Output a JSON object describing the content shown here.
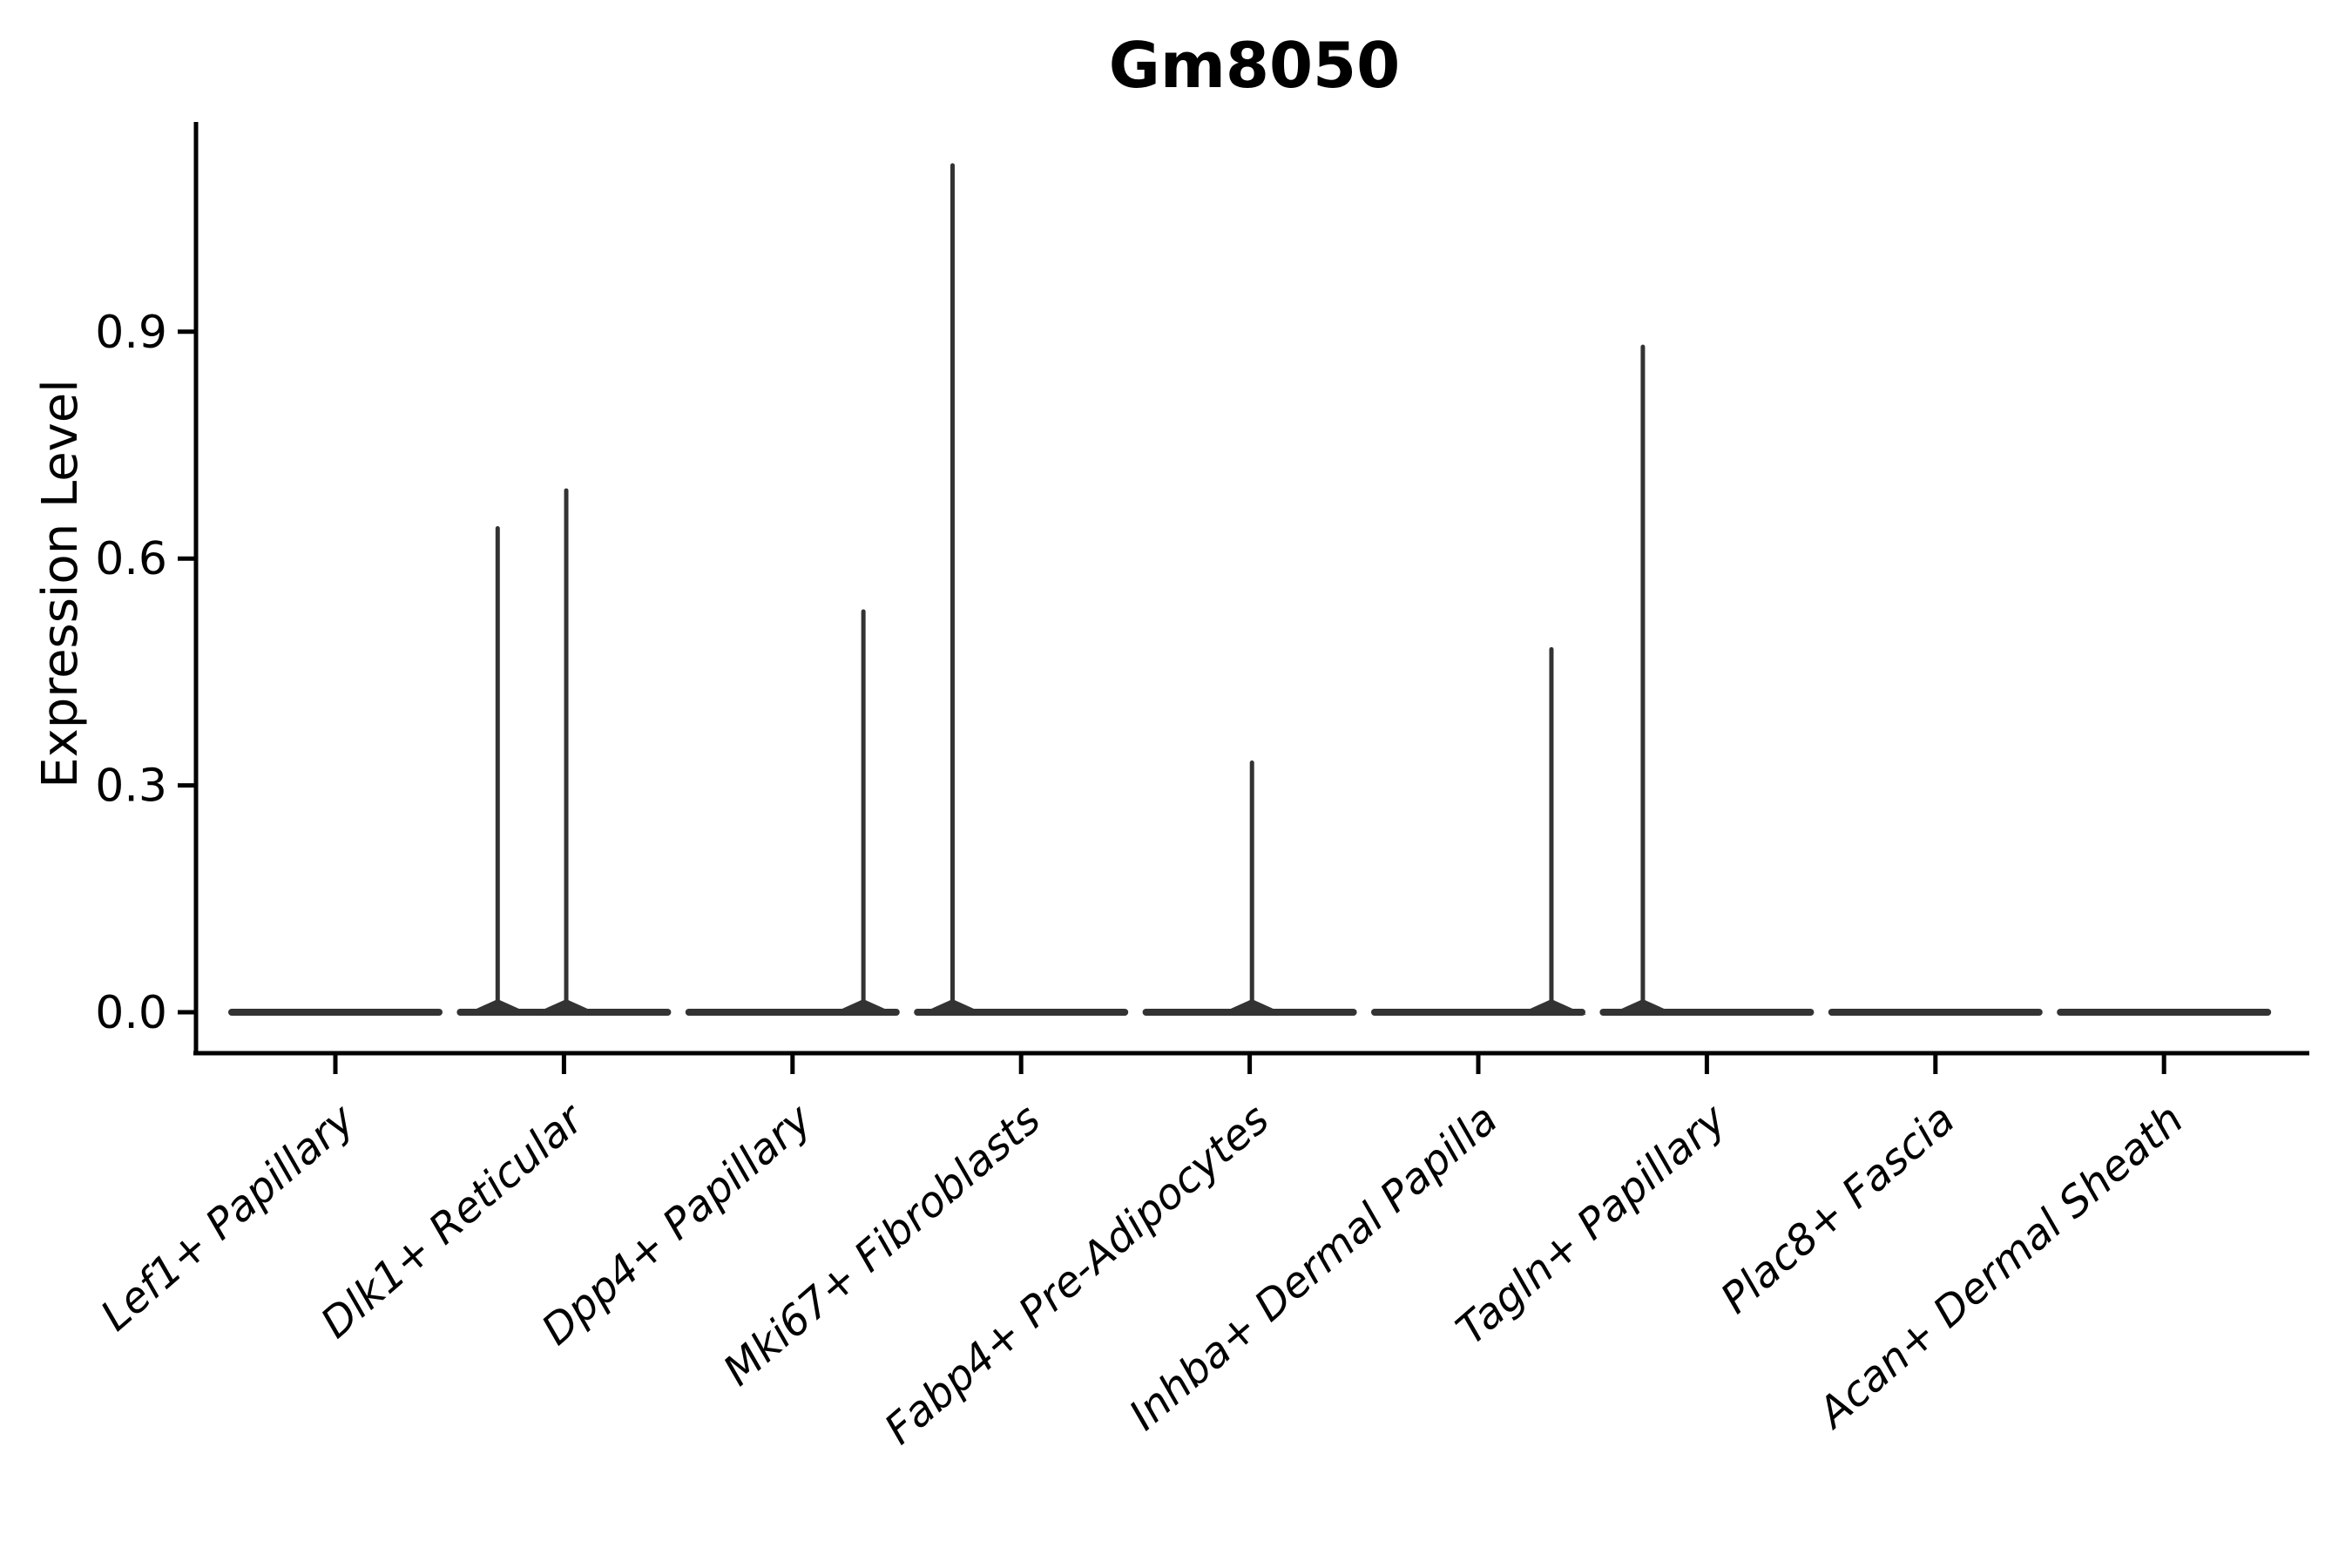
{
  "figure": {
    "background": "#ffffff"
  },
  "chart_data": {
    "type": "violin",
    "title": "Gm8050",
    "xlabel": "",
    "ylabel": "Expression Level",
    "categories": [
      "Lef1+ Papillary",
      "Dlk1+ Reticular",
      "Dpp4+ Papillary",
      "Mki67+ Fibroblasts",
      "Fabp4+ Pre-Adipocytes",
      "Inhba+ Dermal Papilla",
      "Tagln+ Papillary",
      "Plac8+ Fascia",
      "Acan+ Dermal Sheath"
    ],
    "y_tick_labels": [
      "0.0",
      "0.3",
      "0.6",
      "0.9"
    ],
    "y_tick_values": [
      0.0,
      0.3,
      0.6,
      0.9
    ],
    "ylim": [
      -0.055,
      1.18
    ],
    "grid": false,
    "legend": null,
    "baseline_value": 0.0,
    "series": [
      {
        "name": "Lef1+ Papillary",
        "max_value": 0.0,
        "spikes": []
      },
      {
        "name": "Dlk1+ Reticular",
        "max_value": 0.69,
        "spikes": [
          {
            "offset_frac": -0.29,
            "value": 0.64
          },
          {
            "offset_frac": 0.01,
            "value": 0.69
          }
        ]
      },
      {
        "name": "Dpp4+ Papillary",
        "max_value": 0.53,
        "spikes": [
          {
            "offset_frac": 0.31,
            "value": 0.53
          }
        ]
      },
      {
        "name": "Mki67+ Fibroblasts",
        "max_value": 1.12,
        "spikes": [
          {
            "offset_frac": -0.3,
            "value": 1.12
          }
        ]
      },
      {
        "name": "Fabp4+ Pre-Adipocytes",
        "max_value": 0.33,
        "spikes": [
          {
            "offset_frac": 0.01,
            "value": 0.33
          }
        ]
      },
      {
        "name": "Inhba+ Dermal Papilla",
        "max_value": 0.48,
        "spikes": [
          {
            "offset_frac": 0.32,
            "value": 0.48
          }
        ]
      },
      {
        "name": "Tagln+ Papillary",
        "max_value": 0.88,
        "spikes": [
          {
            "offset_frac": -0.28,
            "value": 0.88
          }
        ]
      },
      {
        "name": "Plac8+ Fascia",
        "max_value": 0.0,
        "spikes": []
      },
      {
        "name": "Acan+ Dermal Sheath",
        "max_value": 0.0,
        "spikes": []
      }
    ],
    "colors": {
      "violin_line": "#333333",
      "axis": "#000000",
      "text": "#000000"
    }
  }
}
